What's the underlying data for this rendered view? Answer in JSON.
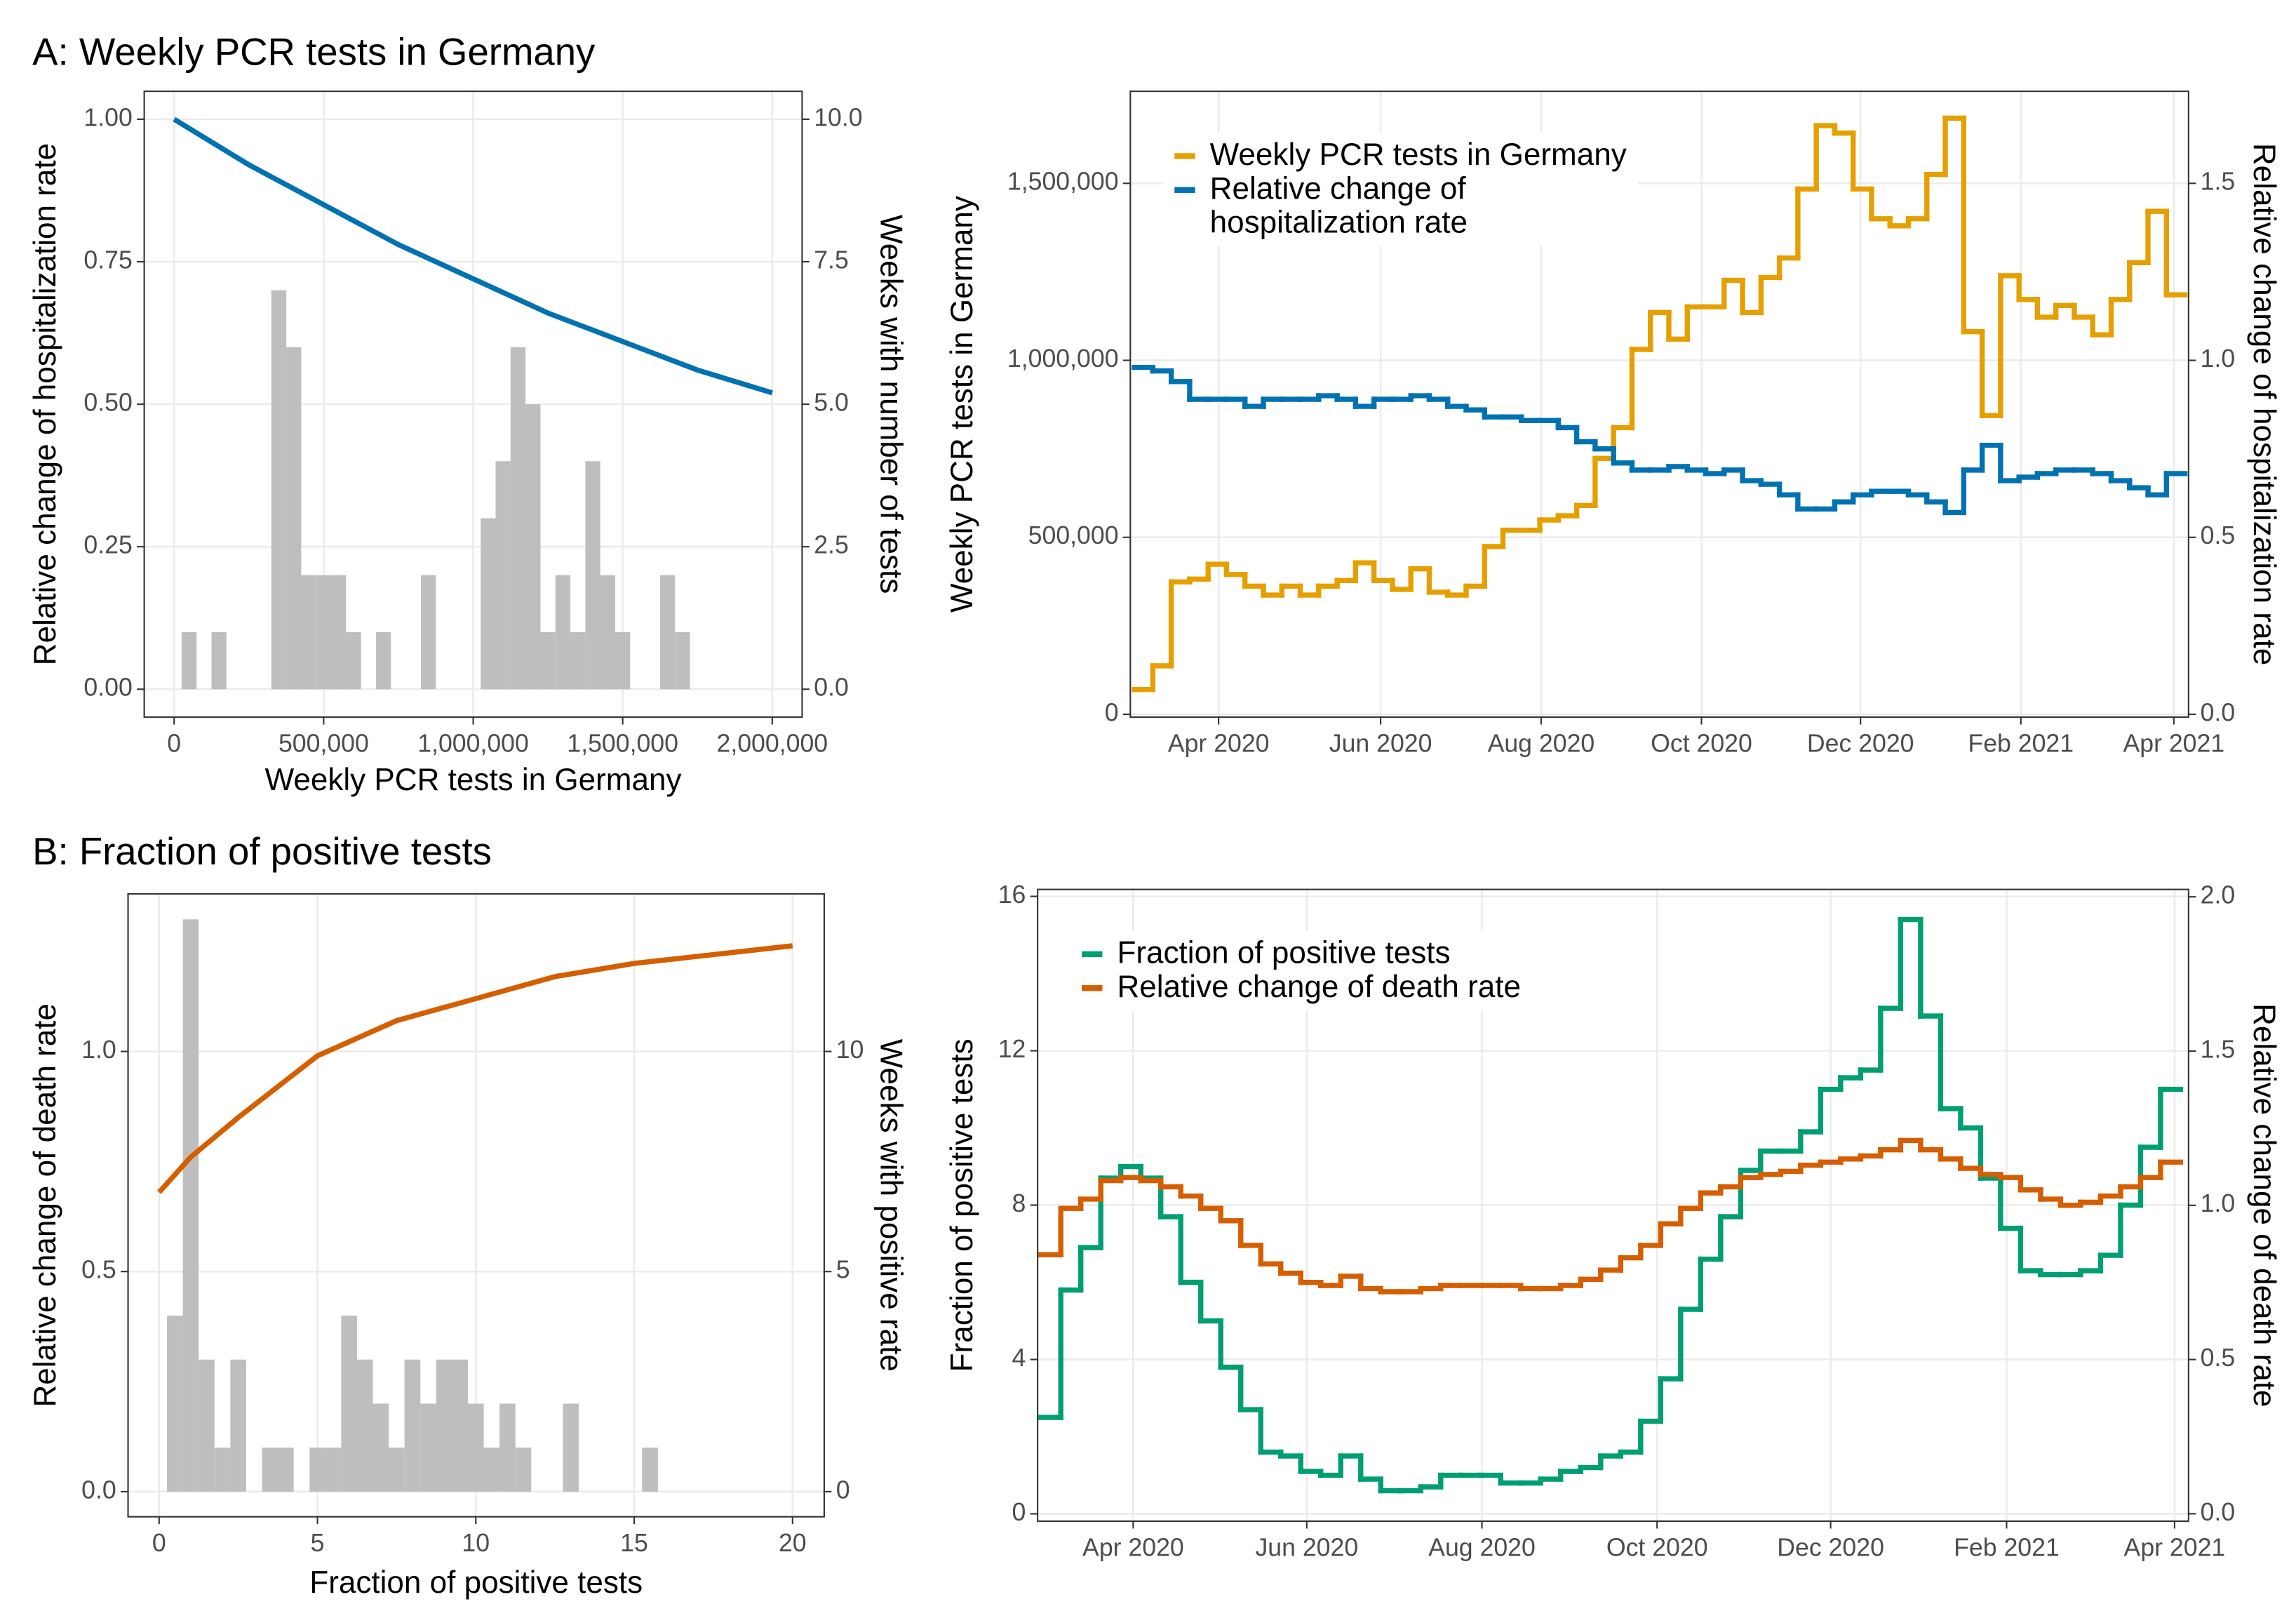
{
  "headings": [
    "A: Weekly PCR tests in Germany",
    "B: Fraction of positive tests"
  ],
  "chart_data": [
    {
      "type": "histogram",
      "xlabel": "Weekly PCR tests in Germany",
      "ylabel": "Relative change of hospitalization rate",
      "y2label": "Weeks with number of tests",
      "xlim": [
        -100000,
        2100000
      ],
      "xticks": [
        0,
        {
          "value": 500000,
          "label": "500,000"
        },
        {
          "value": 1000000,
          "label": "1,000,000"
        },
        {
          "value": 1500000,
          "label": "1,500,000"
        },
        {
          "value": 2000000,
          "label": "2,000,000"
        }
      ],
      "ylim": [
        -0.049,
        1.049
      ],
      "yticks": [
        {
          "value": 0,
          "label": "0.00"
        },
        0.25,
        {
          "value": 0.5,
          "label": "0.50"
        },
        0.75,
        {
          "value": 1,
          "label": "1.00"
        }
      ],
      "y2lim": [
        -0.49,
        10.49
      ],
      "y2ticks": [
        {
          "value": 0,
          "label": "0.0"
        },
        2.5,
        {
          "value": 5,
          "label": "5.0"
        },
        7.5,
        {
          "value": 10,
          "label": "10.0"
        }
      ],
      "grid": true,
      "hist_axis": "y2",
      "color": "#bebebe",
      "bins": [
        25000,
        75000,
        125000,
        175000,
        225000,
        275000,
        325000,
        375000,
        425000,
        475000,
        525000,
        575000,
        625000,
        675000,
        725000,
        775000,
        825000,
        875000,
        925000,
        975000,
        1025000,
        1075000,
        1125000,
        1175000,
        1225000,
        1275000,
        1325000,
        1375000,
        1425000,
        1475000,
        1525000,
        1575000,
        1625000,
        1675000,
        1725000
      ],
      "counts": [
        1,
        0,
        1,
        0,
        0,
        0,
        7,
        6,
        2,
        2,
        2,
        1,
        0,
        1,
        0,
        0,
        2,
        0,
        0,
        0,
        3,
        4,
        6,
        5,
        1,
        2,
        1,
        4,
        2,
        1,
        0,
        0,
        2,
        1
      ],
      "curve": {
        "color": "#0072b2",
        "x": [
          0,
          250000,
          500000,
          750000,
          1000000,
          1250000,
          1500000,
          1750000,
          2000000
        ],
        "values": [
          1.0,
          0.92,
          0.85,
          0.78,
          0.72,
          0.66,
          0.61,
          0.56,
          0.52
        ]
      }
    },
    {
      "type": "line",
      "step": true,
      "legend": "top-left",
      "xlim": [
        -0.72,
        56.7
      ],
      "xticks": [
        {
          "value": 4.07,
          "label": "Apr 2020"
        },
        {
          "value": 12.86,
          "label": "Jun 2020"
        },
        {
          "value": 21.57,
          "label": "Aug 2020"
        },
        {
          "value": 30.27,
          "label": "Oct 2020"
        },
        {
          "value": 38.9,
          "label": "Dec 2020"
        },
        {
          "value": 47.6,
          "label": "Feb 2021"
        },
        {
          "value": 55.9,
          "label": "Apr 2021"
        }
      ],
      "ylabel": "Weekly PCR tests in Germany",
      "y2label": "Relative change of hospitalization rate",
      "ylim": [
        -8000,
        1760000
      ],
      "yticks": [
        0,
        {
          "value": 500000,
          "label": "500,000"
        },
        {
          "value": 1000000,
          "label": "1,000,000"
        },
        {
          "value": 1500000,
          "label": "1,500,000"
        }
      ],
      "y2lim": [
        -0.008,
        1.76
      ],
      "y2ticks": [
        {
          "value": 0,
          "label": "0.0"
        },
        0.5,
        {
          "value": 1,
          "label": "1.0"
        },
        1.5
      ],
      "grid": true,
      "x": [
        0,
        1,
        2,
        3,
        4,
        5,
        6,
        7,
        8,
        9,
        10,
        11,
        12,
        13,
        14,
        15,
        16,
        17,
        18,
        19,
        20,
        21,
        22,
        23,
        24,
        25,
        26,
        27,
        28,
        29,
        30,
        31,
        32,
        33,
        34,
        35,
        36,
        37,
        38,
        39,
        40,
        41,
        42,
        43,
        44,
        45,
        46,
        47,
        48,
        49,
        50,
        51,
        52,
        53,
        54,
        55,
        56
      ],
      "series": [
        {
          "name": "Weekly PCR tests in Germany",
          "color": "#e69f00",
          "axis": "y",
          "values": [
            70000,
            137000,
            374000,
            382000,
            424000,
            395000,
            362000,
            337000,
            362000,
            337000,
            362000,
            378000,
            428000,
            378000,
            353000,
            411000,
            345000,
            337000,
            362000,
            474000,
            520000,
            520000,
            549000,
            561000,
            590000,
            723000,
            810000,
            1031000,
            1135000,
            1060000,
            1151000,
            1151000,
            1226000,
            1135000,
            1234000,
            1289000,
            1484000,
            1663000,
            1642000,
            1484000,
            1400000,
            1380000,
            1400000,
            1525000,
            1684000,
            1081000,
            844000,
            1239000,
            1172000,
            1122000,
            1155000,
            1122000,
            1072000,
            1172000,
            1276000,
            1421000,
            1185000
          ]
        },
        {
          "name": "Relative change of\nhospitalization rate",
          "color": "#0072b2",
          "axis": "y2",
          "values": [
            0.98,
            0.97,
            0.94,
            0.89,
            0.89,
            0.89,
            0.87,
            0.89,
            0.89,
            0.89,
            0.9,
            0.89,
            0.87,
            0.89,
            0.89,
            0.9,
            0.89,
            0.87,
            0.86,
            0.84,
            0.84,
            0.83,
            0.83,
            0.81,
            0.77,
            0.75,
            0.71,
            0.69,
            0.69,
            0.7,
            0.69,
            0.68,
            0.69,
            0.66,
            0.65,
            0.62,
            0.58,
            0.58,
            0.6,
            0.62,
            0.63,
            0.63,
            0.62,
            0.6,
            0.57,
            0.69,
            0.76,
            0.66,
            0.67,
            0.68,
            0.69,
            0.69,
            0.68,
            0.66,
            0.64,
            0.62,
            0.68
          ]
        }
      ]
    },
    {
      "type": "histogram",
      "xlabel": "Fraction of positive tests",
      "ylabel": "Relative change of death rate",
      "y2label": "Weeks with positive rate",
      "xlim": [
        -0.98,
        21.0
      ],
      "xticks": [
        0,
        5,
        10,
        15,
        20
      ],
      "ylim": [
        -0.057,
        1.358
      ],
      "yticks": [
        {
          "value": 0,
          "label": "0.0"
        },
        0.5,
        {
          "value": 1,
          "label": "1.0"
        }
      ],
      "y2lim": [
        -0.57,
        13.58
      ],
      "y2ticks": [
        0,
        5,
        10
      ],
      "grid": true,
      "hist_axis": "y2",
      "color": "#bebebe",
      "bins": [
        0.25,
        0.75,
        1.25,
        1.75,
        2.25,
        2.75,
        3.25,
        3.75,
        4.25,
        4.75,
        5.25,
        5.75,
        6.25,
        6.75,
        7.25,
        7.75,
        8.25,
        8.75,
        9.25,
        9.75,
        10.25,
        10.75,
        11.25,
        11.75,
        12.25,
        12.75,
        13.25,
        13.75,
        14.25,
        14.75,
        15.25,
        15.75
      ],
      "counts": [
        4,
        13,
        3,
        1,
        3,
        0,
        1,
        1,
        0,
        1,
        1,
        4,
        3,
        2,
        1,
        3,
        2,
        3,
        3,
        2,
        1,
        2,
        1,
        0,
        0,
        2,
        0,
        0,
        0,
        0,
        1
      ],
      "curve": {
        "color": "#d55e00",
        "x": [
          0,
          1,
          2.5,
          5,
          7.5,
          10,
          12.5,
          15,
          17.5,
          20
        ],
        "values": [
          0.68,
          0.76,
          0.85,
          0.99,
          1.07,
          1.12,
          1.17,
          1.2,
          1.22,
          1.24
        ]
      }
    },
    {
      "type": "line",
      "step": true,
      "legend": "top-left",
      "xlim": [
        -0.66,
        56.9
      ],
      "xticks": [
        {
          "value": 4.12,
          "label": "Apr 2020"
        },
        {
          "value": 12.8,
          "label": "Jun 2020"
        },
        {
          "value": 21.56,
          "label": "Aug 2020"
        },
        {
          "value": 30.32,
          "label": "Oct 2020"
        },
        {
          "value": 39.0,
          "label": "Dec 2020"
        },
        {
          "value": 47.8,
          "label": "Feb 2021"
        },
        {
          "value": 56.2,
          "label": "Apr 2021"
        }
      ],
      "ylabel": "Fraction of positive tests",
      "y2label": "Relative change of death rate",
      "ylim": [
        -0.19,
        16.18
      ],
      "yticks": [
        0,
        4,
        8,
        12,
        16
      ],
      "y2lim": [
        -0.024,
        2.024
      ],
      "y2ticks": [
        {
          "value": 0,
          "label": "0.0"
        },
        0.5,
        {
          "value": 1,
          "label": "1.0"
        },
        1.5,
        {
          "value": 2,
          "label": "2.0"
        }
      ],
      "grid": true,
      "x": [
        0,
        1,
        2,
        3,
        4,
        5,
        6,
        7,
        8,
        9,
        10,
        11,
        12,
        13,
        14,
        15,
        16,
        17,
        18,
        19,
        20,
        21,
        22,
        23,
        24,
        25,
        26,
        27,
        28,
        29,
        30,
        31,
        32,
        33,
        34,
        35,
        36,
        37,
        38,
        39,
        40,
        41,
        42,
        43,
        44,
        45,
        46,
        47,
        48,
        49,
        50,
        51,
        52,
        53,
        54,
        55,
        56
      ],
      "series": [
        {
          "name": "Fraction of positive tests",
          "color": "#009e73",
          "axis": "y",
          "values": [
            2.5,
            5.8,
            6.9,
            8.7,
            9.0,
            8.7,
            7.7,
            6.0,
            5.0,
            3.8,
            2.7,
            1.6,
            1.5,
            1.1,
            1.0,
            1.5,
            0.9,
            0.6,
            0.6,
            0.7,
            1.0,
            1.0,
            1.0,
            0.8,
            0.8,
            0.9,
            1.1,
            1.2,
            1.5,
            1.6,
            2.4,
            3.5,
            5.3,
            6.6,
            7.7,
            8.9,
            9.4,
            9.4,
            9.9,
            11.0,
            11.3,
            11.5,
            13.1,
            15.4,
            12.9,
            10.5,
            10.0,
            8.7,
            7.4,
            6.3,
            6.2,
            6.2,
            6.3,
            6.7,
            8.0,
            9.5,
            11.0
          ]
        },
        {
          "name": "Relative change of death rate",
          "color": "#d55e00",
          "axis": "y2",
          "values": [
            0.84,
            0.99,
            1.02,
            1.08,
            1.09,
            1.08,
            1.06,
            1.03,
            0.99,
            0.95,
            0.87,
            0.81,
            0.78,
            0.75,
            0.74,
            0.77,
            0.73,
            0.72,
            0.72,
            0.73,
            0.74,
            0.74,
            0.74,
            0.74,
            0.73,
            0.73,
            0.74,
            0.76,
            0.79,
            0.83,
            0.87,
            0.94,
            0.99,
            1.04,
            1.06,
            1.09,
            1.1,
            1.11,
            1.13,
            1.14,
            1.15,
            1.16,
            1.18,
            1.21,
            1.18,
            1.15,
            1.12,
            1.1,
            1.09,
            1.05,
            1.02,
            1.0,
            1.01,
            1.03,
            1.06,
            1.09,
            1.14
          ]
        }
      ]
    }
  ]
}
